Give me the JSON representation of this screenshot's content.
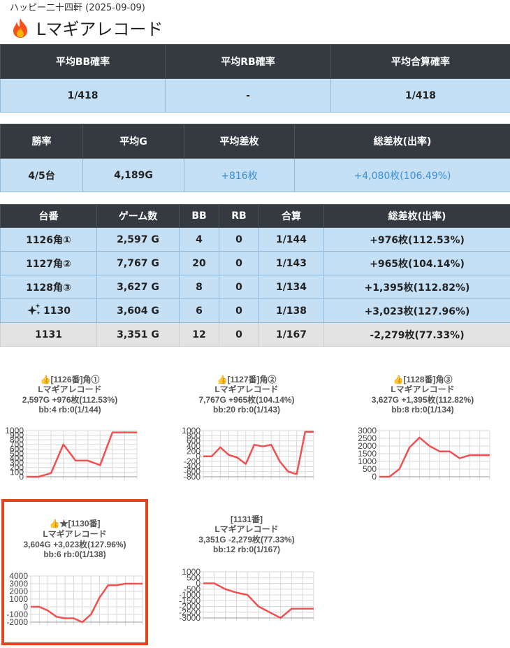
{
  "header": {
    "subtitle": "ハッピー二十四軒 (2025-09-09)",
    "title": "Lマギアレコード",
    "icon": "fire-icon"
  },
  "summary1": {
    "headers": [
      "平均BB確率",
      "平均RB確率",
      "平均合算確率"
    ],
    "values": [
      "1/418",
      "-",
      "1/418"
    ]
  },
  "summary2": {
    "headers": [
      "勝率",
      "平均G",
      "平均差枚",
      "総差枚(出率)"
    ],
    "values": [
      "4/5台",
      "4,189G",
      "+816枚",
      "+4,080枚(106.49%)"
    ]
  },
  "machines": {
    "headers": [
      "台番",
      "ゲーム数",
      "BB",
      "RB",
      "合算",
      "総差枚(出率)"
    ],
    "rows": [
      {
        "no": "1126角①",
        "games": "2,597 G",
        "bb": "4",
        "rb": "0",
        "combined": "1/144",
        "diff": "+976枚(112.53%)"
      },
      {
        "no": "1127角②",
        "games": "7,767 G",
        "bb": "20",
        "rb": "0",
        "combined": "1/143",
        "diff": "+965枚(104.14%)"
      },
      {
        "no": "1128角③",
        "games": "3,627 G",
        "bb": "8",
        "rb": "0",
        "combined": "1/134",
        "diff": "+1,395枚(112.82%)"
      },
      {
        "no": "1130",
        "games": "3,604 G",
        "bb": "6",
        "rb": "0",
        "combined": "1/138",
        "diff": "+3,023枚(127.96%)",
        "icon": "sparkle-icon"
      },
      {
        "no": "1131",
        "games": "3,351 G",
        "bb": "12",
        "rb": "0",
        "combined": "1/167",
        "diff": "-2,279枚(77.33%)"
      }
    ]
  },
  "cards": [
    {
      "l1": "👍[1126番]角①",
      "l2": "Lマギアレコード",
      "l3": "2,597G +976枚(112.53%)",
      "l4": "bb:4 rb:0(1/144)"
    },
    {
      "l1": "👍[1127番]角②",
      "l2": "Lマギアレコード",
      "l3": "7,767G +965枚(104.14%)",
      "l4": "bb:20 rb:0(1/143)"
    },
    {
      "l1": "👍[1128番]角③",
      "l2": "Lマギアレコード",
      "l3": "3,627G +1,395枚(112.82%)",
      "l4": "bb:8 rb:0(1/134)"
    },
    {
      "l1": "👍★[1130番]",
      "l2": "Lマギアレコード",
      "l3": "3,604G +3,023枚(127.96%)",
      "l4": "bb:6 rb:0(1/138)"
    },
    {
      "l1": "[1131番]",
      "l2": "Lマギアレコード",
      "l3": "3,351G -2,279枚(77.33%)",
      "l4": "bb:12 rb:0(1/167)"
    }
  ],
  "chart_data": [
    {
      "type": "line",
      "ylim": [
        0,
        1000
      ],
      "yticks": [
        1000,
        900,
        800,
        700,
        600,
        500,
        400,
        300,
        200,
        100,
        0
      ],
      "y": [
        0,
        0,
        80,
        700,
        350,
        350,
        250,
        960,
        960,
        960
      ],
      "color": "#f05050"
    },
    {
      "type": "line",
      "ylim": [
        -800,
        1000
      ],
      "yticks": [
        1000,
        800,
        600,
        400,
        200,
        0,
        -200,
        -400,
        -600,
        -800
      ],
      "y": [
        0,
        0,
        350,
        50,
        -50,
        -300,
        450,
        380,
        450,
        -200,
        -600,
        -700,
        950,
        950
      ],
      "color": "#f05050"
    },
    {
      "type": "line",
      "ylim": [
        0,
        3000
      ],
      "yticks": [
        3000,
        2500,
        2000,
        1500,
        1000,
        500,
        0
      ],
      "y": [
        0,
        0,
        500,
        1900,
        2550,
        2000,
        1650,
        1650,
        1200,
        1400,
        1400,
        1400
      ],
      "color": "#f05050"
    },
    {
      "type": "line",
      "ylim": [
        -2000,
        4000
      ],
      "yticks": [
        4000,
        3000,
        2000,
        1000,
        0,
        -1000,
        -2000
      ],
      "y": [
        0,
        0,
        -500,
        -1300,
        -1500,
        -1500,
        -2000,
        -1000,
        1200,
        2800,
        2800,
        3000,
        3000,
        3000
      ],
      "color": "#f05050"
    },
    {
      "type": "line",
      "ylim": [
        -3000,
        1000
      ],
      "yticks": [
        1000,
        500,
        0,
        -500,
        -1000,
        -1500,
        -2000,
        -2500,
        -3000
      ],
      "y": [
        0,
        0,
        -500,
        -800,
        -1000,
        -2000,
        -2500,
        -3000,
        -2200,
        -2200,
        -2200
      ],
      "color": "#f05050"
    }
  ]
}
